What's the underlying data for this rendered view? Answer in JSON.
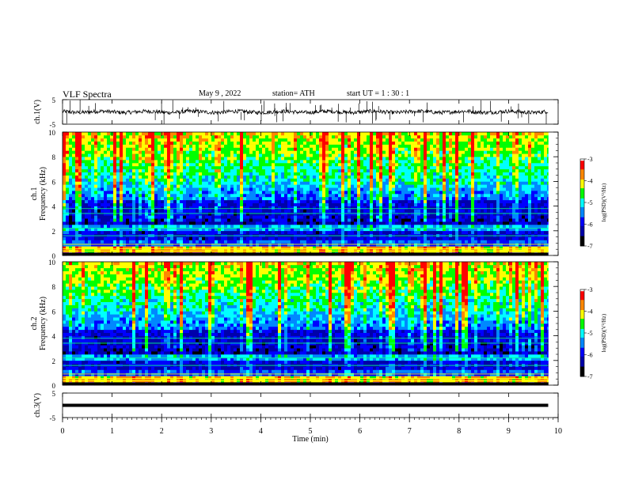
{
  "header": {
    "title": "VLF  Spectra",
    "date": "May 9 , 2022",
    "station": "station= ATH",
    "start_ut": "start  UT  =    1  : 30 : 1"
  },
  "chart_data": [
    {
      "type": "line",
      "name": "ch1-waveform",
      "ylabel": "ch.1(V)",
      "ylim": [
        -5,
        5
      ],
      "yticks": [
        "5",
        "-5"
      ],
      "xlim": [
        0,
        10
      ],
      "data_extent_min": 9.8,
      "baseline": 0,
      "noise_amplitude": 0.8,
      "spike_max": 5
    },
    {
      "type": "heatmap",
      "name": "ch1-spectrogram",
      "ylabel": "ch.1 Frequency  (kHz)",
      "ylim": [
        0,
        10
      ],
      "yticks": [
        "0",
        "2",
        "4",
        "6",
        "8",
        "10"
      ],
      "xlim": [
        0,
        10
      ],
      "data_extent_min": 9.8,
      "colorbar": {
        "label": "log(PSD)(V²/Hz)",
        "range": [
          -7,
          -3
        ],
        "ticks": [
          "-3",
          "-4",
          "-5",
          "-6",
          "-7"
        ]
      }
    },
    {
      "type": "heatmap",
      "name": "ch2-spectrogram",
      "ylabel": "ch.2 Frequency  (kHz)",
      "ylim": [
        0,
        10
      ],
      "yticks": [
        "0",
        "2",
        "4",
        "6",
        "8",
        "10"
      ],
      "xlim": [
        0,
        10
      ],
      "data_extent_min": 9.8,
      "colorbar": {
        "label": "log(PSD)(V²/Hz)",
        "range": [
          -7,
          -3
        ],
        "ticks": [
          "-3",
          "-4",
          "-5",
          "-6",
          "-7"
        ]
      }
    },
    {
      "type": "line",
      "name": "ch3-waveform",
      "ylabel": "ch.3(V)",
      "ylim": [
        -5,
        5
      ],
      "yticks": [
        "5",
        "-5"
      ],
      "xlim": [
        0,
        10
      ],
      "data_extent_min": 9.8,
      "baseline": 0,
      "noise_amplitude": 0
    }
  ],
  "xaxis": {
    "label": "Time  (min)",
    "range": [
      0,
      10
    ],
    "ticks": [
      "0",
      "1",
      "2",
      "3",
      "4",
      "5",
      "6",
      "7",
      "8",
      "9",
      "10"
    ]
  },
  "colors": {
    "colormap": [
      "#000000",
      "#0000aa",
      "#0000ff",
      "#0088ff",
      "#00ffff",
      "#00ff00",
      "#ffff00",
      "#ff8800",
      "#ff0000",
      "#ffffff"
    ]
  }
}
